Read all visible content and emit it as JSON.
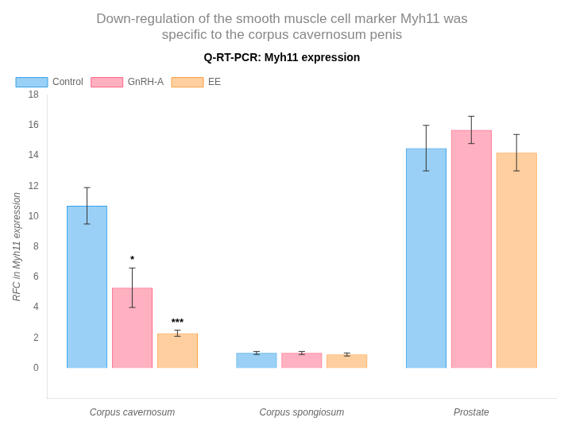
{
  "chart_data": {
    "type": "bar",
    "title": [
      "Down-regulation of the smooth muscle cell marker Myh11 was",
      "specific to the corpus cavernosum penis"
    ],
    "subtitle": "Q-RT-PCR: Myh11 expression",
    "y_label": "RFC in Myh11 expression",
    "categories": [
      "Corpus cavernosum",
      "Corpus spongiosum",
      "Prostate"
    ],
    "series": [
      {
        "name": "Control",
        "values": [
          10.7,
          1.0,
          14.5
        ],
        "errors": [
          1.2,
          0.1,
          1.5
        ]
      },
      {
        "name": "GnRH-A",
        "values": [
          5.3,
          1.0,
          15.7
        ],
        "errors": [
          1.3,
          0.1,
          0.9
        ]
      },
      {
        "name": "EE",
        "values": [
          2.3,
          0.9,
          14.2
        ],
        "errors": [
          0.2,
          0.1,
          1.2
        ]
      }
    ],
    "ylim": [
      -2,
      18
    ],
    "yticks": [
      0,
      2,
      4,
      6,
      8,
      10,
      12,
      14,
      16,
      18
    ],
    "grid": false,
    "legend": "upper left",
    "annotations": [
      {
        "text": "*",
        "category": "Corpus cavernosum",
        "series": "GnRH-A"
      },
      {
        "text": "***",
        "category": "Corpus cavernosum",
        "series": "EE"
      }
    ]
  }
}
